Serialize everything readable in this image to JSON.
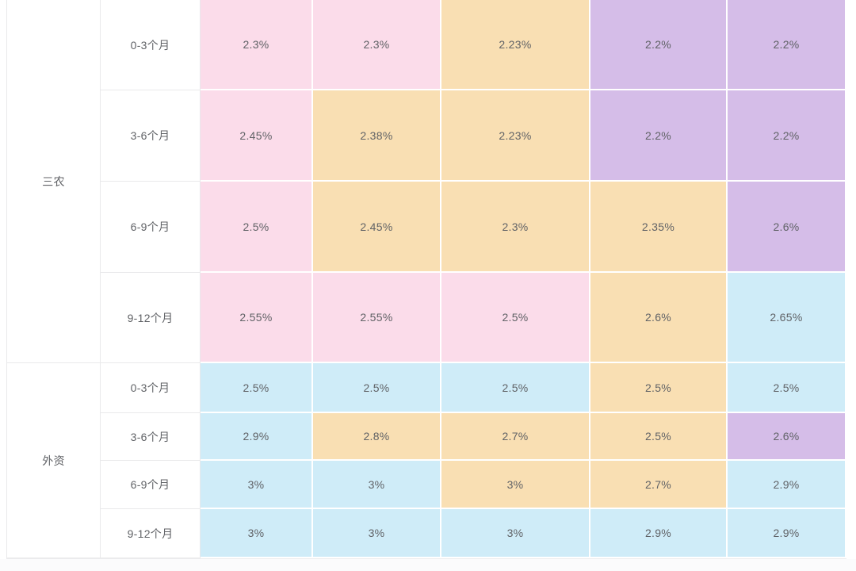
{
  "palette": {
    "pink": "#fbdcea",
    "orange": "#f9dfb3",
    "purple": "#d5bde8",
    "blue": "#cfecf8",
    "cell_text": "#606266",
    "grid_line": "#e9e9eb",
    "gap": "#ffffff"
  },
  "table": {
    "sections": [
      {
        "group": "三农",
        "rows": [
          {
            "period": "0-3个月",
            "cells": [
              {
                "value": "2.3%",
                "color": "pink"
              },
              {
                "value": "2.3%",
                "color": "pink"
              },
              {
                "value": "2.23%",
                "color": "orange"
              },
              {
                "value": "2.2%",
                "color": "purple"
              },
              {
                "value": "2.2%",
                "color": "purple"
              }
            ]
          },
          {
            "period": "3-6个月",
            "cells": [
              {
                "value": "2.45%",
                "color": "pink"
              },
              {
                "value": "2.38%",
                "color": "orange"
              },
              {
                "value": "2.23%",
                "color": "orange"
              },
              {
                "value": "2.2%",
                "color": "purple"
              },
              {
                "value": "2.2%",
                "color": "purple"
              }
            ]
          },
          {
            "period": "6-9个月",
            "cells": [
              {
                "value": "2.5%",
                "color": "pink"
              },
              {
                "value": "2.45%",
                "color": "orange"
              },
              {
                "value": "2.3%",
                "color": "orange"
              },
              {
                "value": "2.35%",
                "color": "orange"
              },
              {
                "value": "2.6%",
                "color": "purple"
              }
            ]
          },
          {
            "period": "9-12个月",
            "cells": [
              {
                "value": "2.55%",
                "color": "pink"
              },
              {
                "value": "2.55%",
                "color": "pink"
              },
              {
                "value": "2.5%",
                "color": "pink"
              },
              {
                "value": "2.6%",
                "color": "orange"
              },
              {
                "value": "2.65%",
                "color": "blue"
              }
            ]
          }
        ]
      },
      {
        "group": "外资",
        "rows": [
          {
            "period": "0-3个月",
            "cells": [
              {
                "value": "2.5%",
                "color": "blue"
              },
              {
                "value": "2.5%",
                "color": "blue"
              },
              {
                "value": "2.5%",
                "color": "blue"
              },
              {
                "value": "2.5%",
                "color": "orange"
              },
              {
                "value": "2.5%",
                "color": "blue"
              }
            ]
          },
          {
            "period": "3-6个月",
            "cells": [
              {
                "value": "2.9%",
                "color": "blue"
              },
              {
                "value": "2.8%",
                "color": "orange"
              },
              {
                "value": "2.7%",
                "color": "orange"
              },
              {
                "value": "2.5%",
                "color": "orange"
              },
              {
                "value": "2.6%",
                "color": "purple"
              }
            ]
          },
          {
            "period": "6-9个月",
            "cells": [
              {
                "value": "3%",
                "color": "blue"
              },
              {
                "value": "3%",
                "color": "blue"
              },
              {
                "value": "3%",
                "color": "orange"
              },
              {
                "value": "2.7%",
                "color": "orange"
              },
              {
                "value": "2.9%",
                "color": "blue"
              }
            ]
          },
          {
            "period": "9-12个月",
            "cells": [
              {
                "value": "3%",
                "color": "blue"
              },
              {
                "value": "3%",
                "color": "blue"
              },
              {
                "value": "3%",
                "color": "blue"
              },
              {
                "value": "2.9%",
                "color": "blue"
              },
              {
                "value": "2.9%",
                "color": "blue"
              }
            ]
          }
        ]
      }
    ]
  }
}
